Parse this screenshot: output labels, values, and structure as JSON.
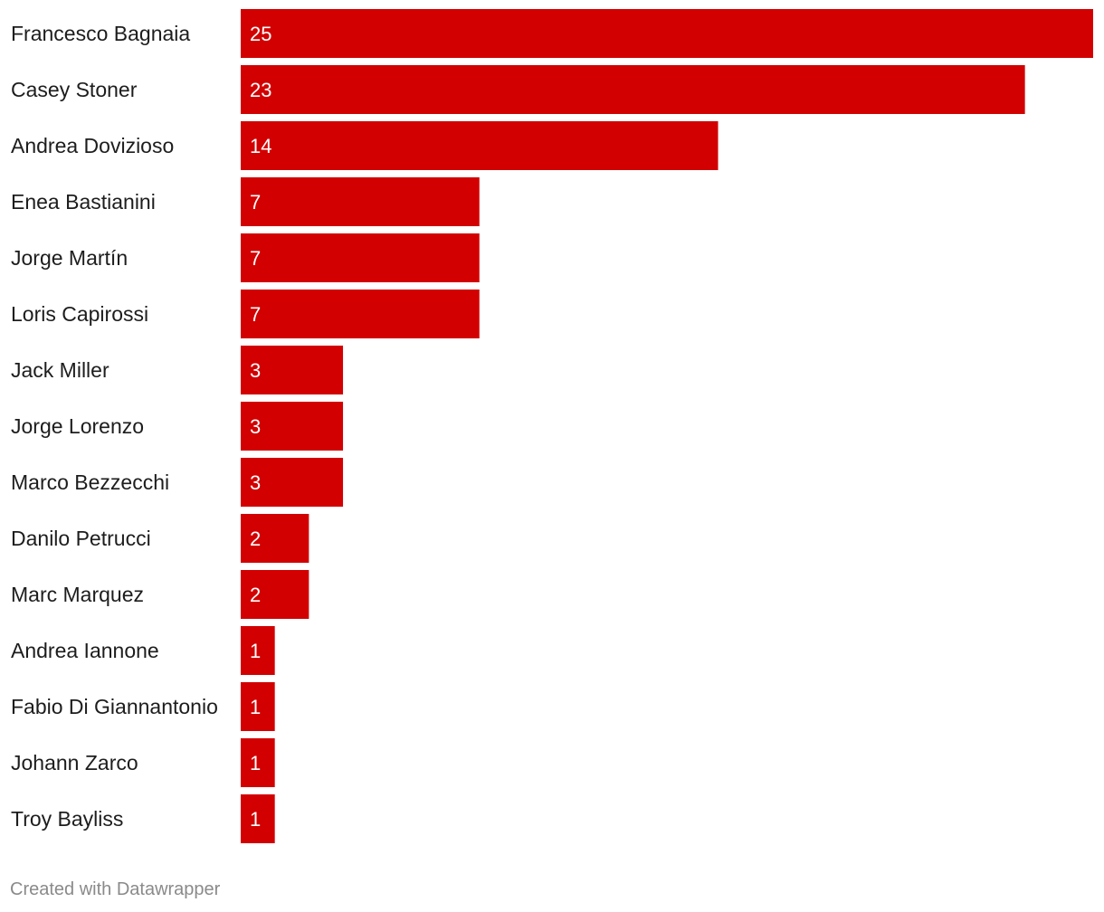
{
  "chart_data": {
    "type": "bar",
    "orientation": "horizontal",
    "categories": [
      "Francesco Bagnaia",
      "Casey Stoner",
      "Andrea Dovizioso",
      "Enea Bastianini",
      "Jorge Martín",
      "Loris Capirossi",
      "Jack Miller",
      "Jorge Lorenzo",
      "Marco Bezzecchi",
      "Danilo Petrucci",
      "Marc Marquez",
      "Andrea Iannone",
      "Fabio Di Giannantonio",
      "Johann Zarco",
      "Troy Bayliss"
    ],
    "values": [
      25,
      23,
      14,
      7,
      7,
      7,
      3,
      3,
      3,
      2,
      2,
      1,
      1,
      1,
      1
    ],
    "title": "",
    "xlabel": "",
    "ylabel": "",
    "xlim": [
      0,
      25
    ],
    "grid": false,
    "legend": "none",
    "bar_color": "#d20000",
    "value_label_color": "#ffffff"
  },
  "credit": "Created with Datawrapper"
}
